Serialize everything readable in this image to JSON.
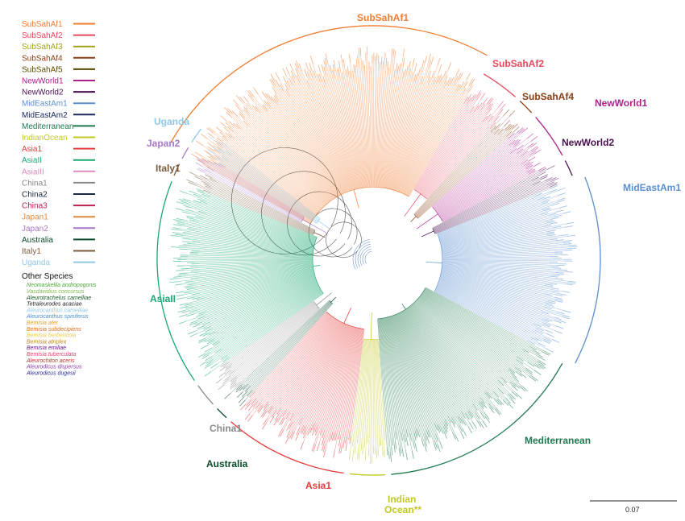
{
  "legend": {
    "groups": [
      {
        "name": "SubSahAf1",
        "color": "#f07d32"
      },
      {
        "name": "SubSahAf2",
        "color": "#e8495c"
      },
      {
        "name": "SubSahAf3",
        "color": "#a3a21a"
      },
      {
        "name": "SubSahAf4",
        "color": "#8b3e12"
      },
      {
        "name": "SubSahAf5",
        "color": "#5a4a00"
      },
      {
        "name": "NewWorld1",
        "color": "#b0208c"
      },
      {
        "name": "NewWorld2",
        "color": "#4a1050"
      },
      {
        "name": "MidEastAm1",
        "color": "#5b8fd0"
      },
      {
        "name": "MidEastAm2",
        "color": "#1a2a60"
      },
      {
        "name": "Mediterranean",
        "color": "#1e7a4e"
      },
      {
        "name": "IndianOcean",
        "color": "#c3c820"
      },
      {
        "name": "Asia1",
        "color": "#e83c3c"
      },
      {
        "name": "AsiaII",
        "color": "#1aa870"
      },
      {
        "name": "AsiaIII",
        "color": "#e08ac0"
      },
      {
        "name": "China1",
        "color": "#8a8a8a"
      },
      {
        "name": "China2",
        "color": "#1a2a40"
      },
      {
        "name": "China3",
        "color": "#c02050"
      },
      {
        "name": "Japan1",
        "color": "#e08a40"
      },
      {
        "name": "Japan2",
        "color": "#a878c8"
      },
      {
        "name": "Australia",
        "color": "#0a4a2a"
      },
      {
        "name": "Italy1",
        "color": "#7a5a3a"
      },
      {
        "name": "Uganda",
        "color": "#90c8e8"
      }
    ],
    "other_species_title": "Other Species",
    "other_species": [
      {
        "name": "Neomaskellia andropogonis",
        "color": "#4aa83a"
      },
      {
        "name": "Vasdavidius concursus",
        "color": "#7ab84a"
      },
      {
        "name": "Aleurotrachelus camelliae",
        "color": "#1a5a2a"
      },
      {
        "name": "Tetraleurodes acaciae",
        "color": "#222222"
      },
      {
        "name": "Aleurocanthus camelliae",
        "color": "#90c8e8"
      },
      {
        "name": "Aleurocanthus spiniferus",
        "color": "#4a90d0"
      },
      {
        "name": "Bemisia afer",
        "color": "#e0a040"
      },
      {
        "name": "Bemisia subdecipiens",
        "color": "#e07020"
      },
      {
        "name": "Bemisia berbericola",
        "color": "#e8c850"
      },
      {
        "name": "Bemisia atriplex",
        "color": "#c08020"
      },
      {
        "name": "Bemisia emiliae",
        "color": "#6a1a8a"
      },
      {
        "name": "Bemisia tuberculata",
        "color": "#e04a70"
      },
      {
        "name": "Aleurochiton aceris",
        "color": "#b03a30"
      },
      {
        "name": "Aleurodicus dispersus",
        "color": "#8a3aa0"
      },
      {
        "name": "Aleurodicus dugesii",
        "color": "#2a2a90"
      }
    ]
  },
  "tree": {
    "sectors": [
      {
        "group": "SubSahAf1",
        "color": "#f07d32",
        "start": -151,
        "end": -60
      },
      {
        "group": "SubSahAf2",
        "color": "#e8495c",
        "start": -60,
        "end": -48
      },
      {
        "group": "SubSahAf4",
        "color": "#8b3e12",
        "start": -48,
        "end": -42
      },
      {
        "group": "NewWorld1",
        "color": "#b0208c",
        "start": -42,
        "end": -28
      },
      {
        "group": "NewWorld2",
        "color": "#4a1050",
        "start": -28,
        "end": -22
      },
      {
        "group": "MidEastAm1",
        "color": "#5b8fd0",
        "start": -22,
        "end": 28
      },
      {
        "group": "Mediterranean",
        "color": "#1e7a4e",
        "start": 28,
        "end": 86
      },
      {
        "group": "IndianOcean",
        "color": "#c3c820",
        "start": 86,
        "end": 97
      },
      {
        "group": "Asia1",
        "color": "#e83c3c",
        "start": 97,
        "end": 132
      },
      {
        "group": "Australia",
        "color": "#0a4a2a",
        "start": 132,
        "end": 137
      },
      {
        "group": "China1",
        "color": "#8a8a8a",
        "start": 137,
        "end": 145
      },
      {
        "group": "AsiaII",
        "color": "#1aa870",
        "start": 145,
        "end": 202
      },
      {
        "group": "Italy1",
        "color": "#7a5a3a",
        "start": 202,
        "end": 207
      },
      {
        "group": "Japan2",
        "color": "#a878c8",
        "start": 207,
        "end": 212
      },
      {
        "group": "Uganda",
        "color": "#90c8e8",
        "start": 212,
        "end": 218
      }
    ]
  },
  "clade_labels": [
    {
      "text": "SubSahAf1",
      "color": "#f07d32"
    },
    {
      "text": "SubSahAf2",
      "color": "#e8495c"
    },
    {
      "text": "SubSahAf4",
      "color": "#8b3e12"
    },
    {
      "text": "NewWorld1",
      "color": "#b0208c"
    },
    {
      "text": "NewWorld2",
      "color": "#4a1050"
    },
    {
      "text": "MidEastAm1",
      "color": "#5b8fd0"
    },
    {
      "text": "Mediterranean",
      "color": "#1e7a4e"
    },
    {
      "text": "Indian",
      "color": "#c3c820"
    },
    {
      "text": "Ocean**",
      "color": "#c3c820"
    },
    {
      "text": "Asia1",
      "color": "#e83c3c"
    },
    {
      "text": "Australia",
      "color": "#0a4a2a"
    },
    {
      "text": "China1",
      "color": "#8a8a8a"
    },
    {
      "text": "AsiaII",
      "color": "#1aa870"
    },
    {
      "text": "Italy1",
      "color": "#7a5a3a"
    },
    {
      "text": "Japan2",
      "color": "#a878c8"
    },
    {
      "text": "Uganda",
      "color": "#90c8e8"
    }
  ],
  "scale_bar": {
    "label": "0.07"
  }
}
